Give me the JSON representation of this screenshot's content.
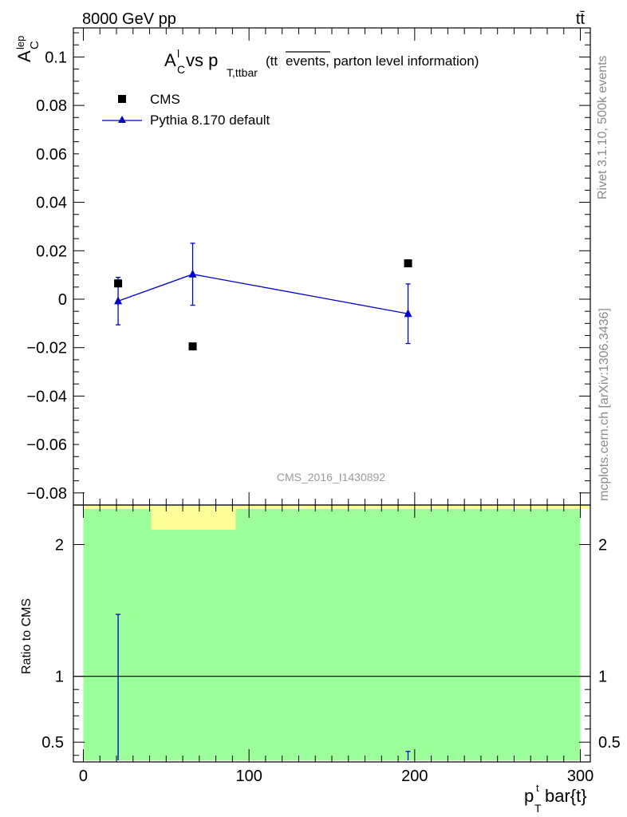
{
  "header": {
    "left": "8000 GeV pp",
    "right": "tt̄"
  },
  "side_text": {
    "upper": "Rivet 3.1.10,  500k events",
    "lower": "mcplots.cern.ch [arXiv:1306.3436]"
  },
  "watermark": "CMS_2016_I1430892",
  "chart_data": [
    {
      "type": "scatter",
      "title_parts": {
        "main": "A",
        "sup": "l",
        "sub": "C",
        "vs": " vs p",
        "vs_sub": "T,ttbar",
        "paren_open": " (tt",
        "overline": "events,",
        "paren_rest": "parton level information)"
      },
      "ylabel": {
        "main": "A",
        "sup": "lep",
        "sub": "C"
      },
      "ylim": [
        -0.085,
        0.112
      ],
      "xlim": [
        -6,
        306
      ],
      "yticks": [
        0.1,
        0.08,
        0.06,
        0.04,
        0.02,
        0,
        -0.02,
        -0.04,
        -0.06,
        -0.08
      ],
      "ytick_labels": [
        "0.1",
        "0.08",
        "0.06",
        "0.04",
        "0.02",
        "0",
        "−0.02",
        "−0.04",
        "−0.06",
        "−0.08"
      ],
      "legend_position": "top-left",
      "series": [
        {
          "name": "CMS",
          "marker": "square",
          "color": "#000000",
          "x": [
            21,
            66,
            196
          ],
          "y": [
            0.0065,
            -0.0195,
            0.0148
          ],
          "yerr": [
            0.0015,
            0.0008,
            0.0008
          ]
        },
        {
          "name": "Pythia 8.170 default",
          "marker": "triangle",
          "color": "#0000cc",
          "x": [
            21,
            66,
            196
          ],
          "y": [
            -0.0008,
            0.0103,
            -0.006
          ],
          "yerr": [
            0.0098,
            0.0128,
            0.0123
          ]
        }
      ]
    },
    {
      "type": "ratio",
      "ylabel": "Ratio to CMS",
      "ylim": [
        0.35,
        2.3
      ],
      "xlim": [
        -6,
        306
      ],
      "yticks": [
        2,
        1,
        0.5
      ],
      "ytick_labels": [
        "2",
        "1",
        "0.5"
      ],
      "xticks": [
        0,
        100,
        200,
        300
      ],
      "xtick_labels": [
        "0",
        "100",
        "200",
        "300"
      ],
      "xlabel": {
        "main": "p",
        "sub": "T",
        "sup": "t",
        "rest": "bar{t}"
      },
      "band_colors": {
        "green": "#9cff9a",
        "yellow": "#ffff9a"
      },
      "reference_line": 1,
      "pythia_errors": [
        {
          "x": 21,
          "low": 0.35,
          "high": 1.47
        },
        {
          "x": 196,
          "low": 0.35,
          "high": 0.43
        }
      ]
    }
  ]
}
